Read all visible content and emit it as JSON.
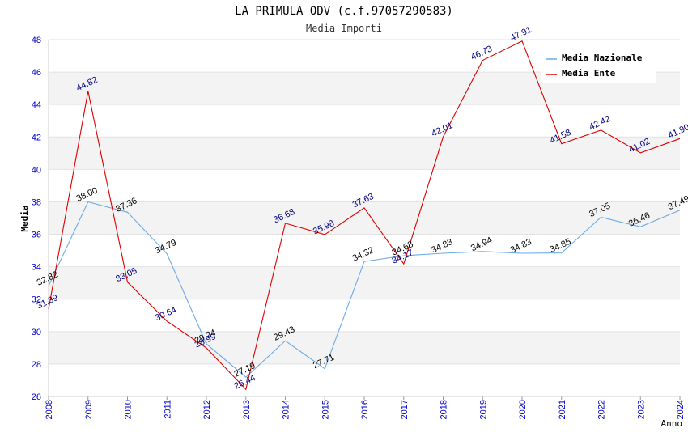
{
  "chart_data": {
    "type": "line",
    "title": "LA PRIMULA ODV (c.f.97057290583)",
    "subtitle": "Media Importi",
    "xlabel": "Anno",
    "ylabel": "Media",
    "ylim": [
      26,
      48
    ],
    "yticks": [
      "26",
      "28",
      "30",
      "32",
      "34",
      "36",
      "38",
      "40",
      "42",
      "44",
      "46",
      "48"
    ],
    "categories": [
      "2008",
      "2009",
      "2010",
      "2011",
      "2012",
      "2013",
      "2014",
      "2015",
      "2016",
      "2017",
      "2018",
      "2019",
      "2020",
      "2021",
      "2022",
      "2023",
      "2024"
    ],
    "legend_position": "top-right",
    "series": [
      {
        "name": "Media Nazionale",
        "color": "#6aaae6",
        "label_color": "#000000",
        "values": [
          32.82,
          38.0,
          37.36,
          34.79,
          29.24,
          27.19,
          29.43,
          27.71,
          34.32,
          34.68,
          34.83,
          34.94,
          34.83,
          34.85,
          37.05,
          36.46,
          37.49
        ],
        "labels": [
          "32.82",
          "38.00",
          "37.36",
          "34.79",
          "29.24",
          "27.19",
          "29.43",
          "27.71",
          "34.32",
          "34.68",
          "34.83",
          "34.94",
          "34.83",
          "34.85",
          "37.05",
          "36.46",
          "37.49"
        ]
      },
      {
        "name": "Media Ente",
        "color": "#dd0000",
        "label_color": "#000080",
        "values": [
          31.39,
          44.82,
          33.05,
          30.64,
          28.99,
          26.44,
          36.68,
          35.98,
          37.63,
          34.17,
          42.01,
          46.73,
          47.91,
          41.58,
          42.42,
          41.02,
          41.9
        ],
        "labels": [
          "31.39",
          "44.82",
          "33.05",
          "30.64",
          "28.99",
          "26.44",
          "36.68",
          "35.98",
          "37.63",
          "34.17",
          "42.01",
          "46.73",
          "47.91",
          "41.58",
          "42.42",
          "41.02",
          "41.90"
        ]
      }
    ]
  }
}
